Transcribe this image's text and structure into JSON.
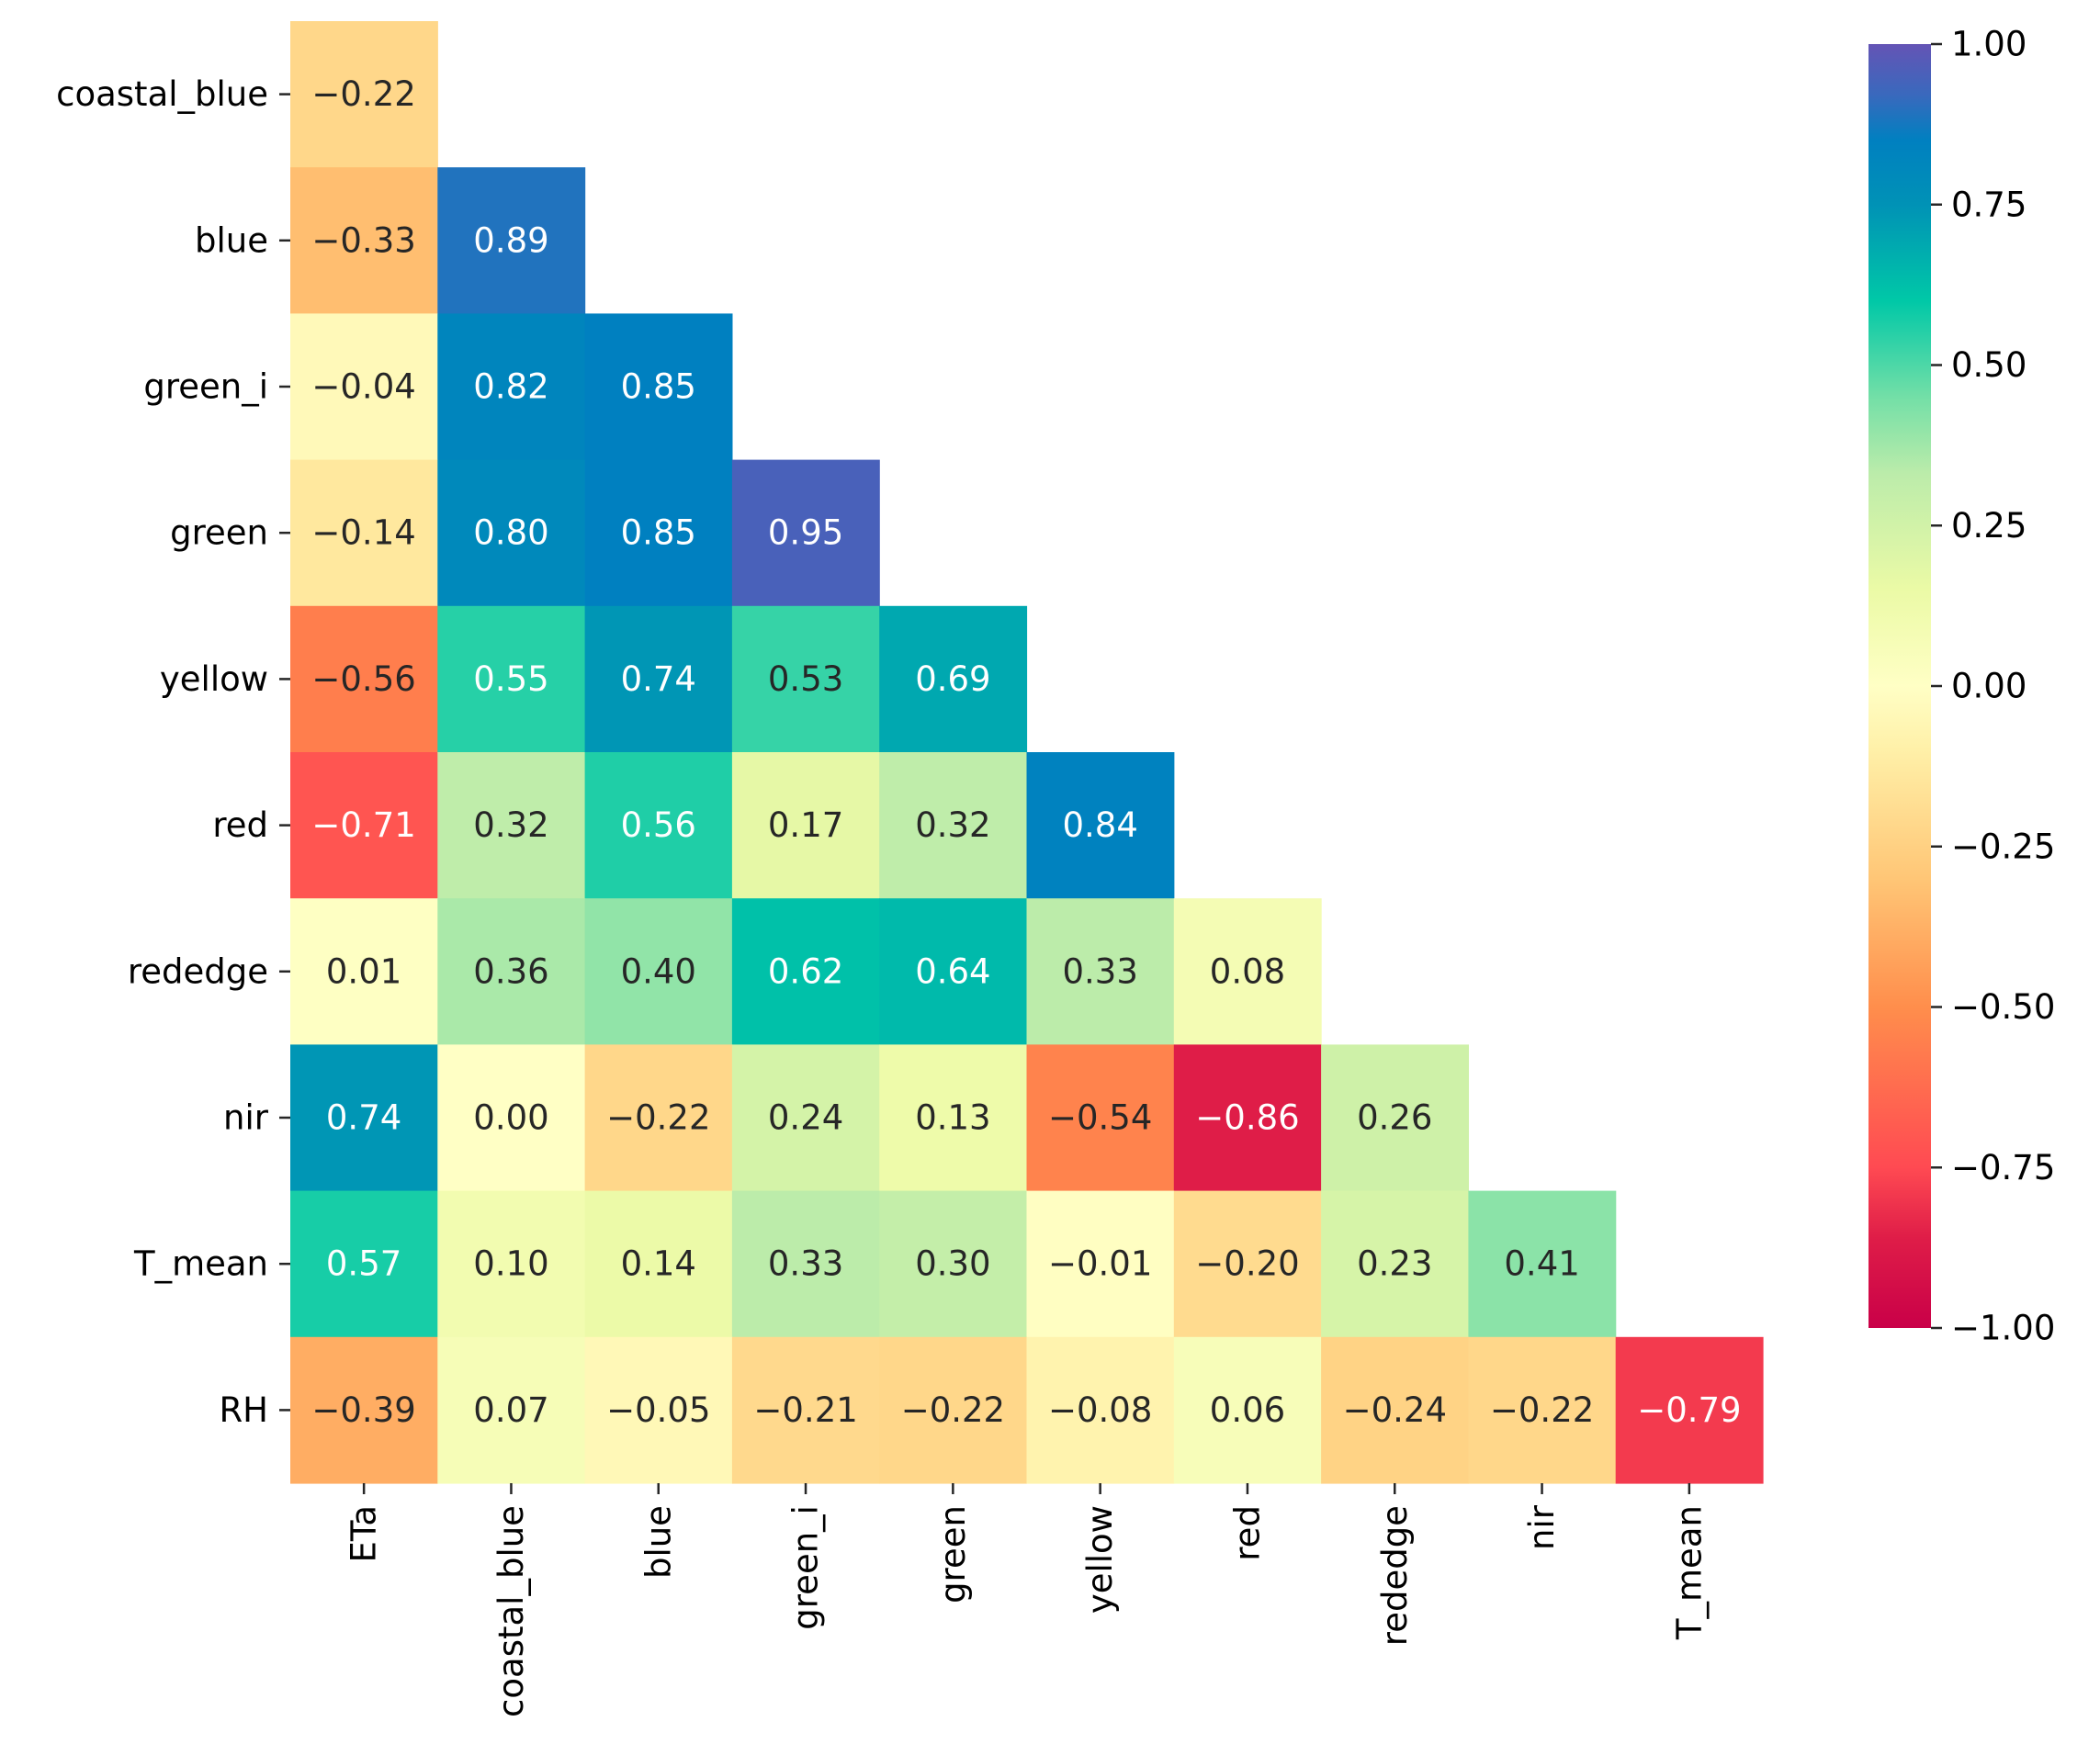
{
  "chart_data": {
    "type": "heatmap",
    "title": "",
    "xlabel": "",
    "ylabel": "",
    "row_labels": [
      "coastal_blue",
      "blue",
      "green_i",
      "green",
      "yellow",
      "red",
      "rededge",
      "nir",
      "T_mean",
      "RH"
    ],
    "col_labels": [
      "ETa",
      "coastal_blue",
      "blue",
      "green_i",
      "green",
      "yellow",
      "red",
      "rededge",
      "nir",
      "T_mean"
    ],
    "values": [
      [
        -0.22
      ],
      [
        -0.33,
        0.89
      ],
      [
        -0.04,
        0.82,
        0.85
      ],
      [
        -0.14,
        0.8,
        0.85,
        0.95
      ],
      [
        -0.56,
        0.55,
        0.74,
        0.53,
        0.69
      ],
      [
        -0.71,
        0.32,
        0.56,
        0.17,
        0.32,
        0.84
      ],
      [
        0.01,
        0.36,
        0.4,
        0.62,
        0.64,
        0.33,
        0.08
      ],
      [
        0.74,
        0.0,
        -0.22,
        0.24,
        0.13,
        -0.54,
        -0.86,
        0.26
      ],
      [
        0.57,
        0.1,
        0.14,
        0.33,
        0.3,
        -0.01,
        -0.2,
        0.23,
        0.41
      ],
      [
        -0.39,
        0.07,
        -0.05,
        -0.21,
        -0.22,
        -0.08,
        0.06,
        -0.24,
        -0.22,
        -0.79
      ]
    ],
    "annotation_format": "0.00",
    "mask": "upper-triangle",
    "colorbar": {
      "colormap": "Spectral",
      "vmin": -1.0,
      "vmax": 1.0,
      "ticks": [
        1.0,
        0.75,
        0.5,
        0.25,
        0.0,
        -0.25,
        -0.5,
        -0.75,
        -1.0
      ],
      "tick_labels": [
        "1.00",
        "0.75",
        "0.50",
        "0.25",
        "0.00",
        "−0.25",
        "−0.50",
        "−0.75",
        "−1.00"
      ]
    },
    "colormap_stops": [
      {
        "v": -1.0,
        "color": "#c90048"
      },
      {
        "v": -0.86,
        "color": "#df1d48"
      },
      {
        "v": -0.75,
        "color": "#ff4a52"
      },
      {
        "v": -0.5,
        "color": "#ff8e4c"
      },
      {
        "v": -0.3,
        "color": "#ffc676"
      },
      {
        "v": -0.1,
        "color": "#fff0a8"
      },
      {
        "v": 0.0,
        "color": "#ffffc5"
      },
      {
        "v": 0.15,
        "color": "#ebfaa6"
      },
      {
        "v": 0.33,
        "color": "#bcecaa"
      },
      {
        "v": 0.45,
        "color": "#73dfa7"
      },
      {
        "v": 0.6,
        "color": "#00c8a7"
      },
      {
        "v": 0.75,
        "color": "#0092b6"
      },
      {
        "v": 0.85,
        "color": "#0080c0"
      },
      {
        "v": 0.92,
        "color": "#3969bd"
      },
      {
        "v": 1.0,
        "color": "#6454b5"
      }
    ]
  }
}
